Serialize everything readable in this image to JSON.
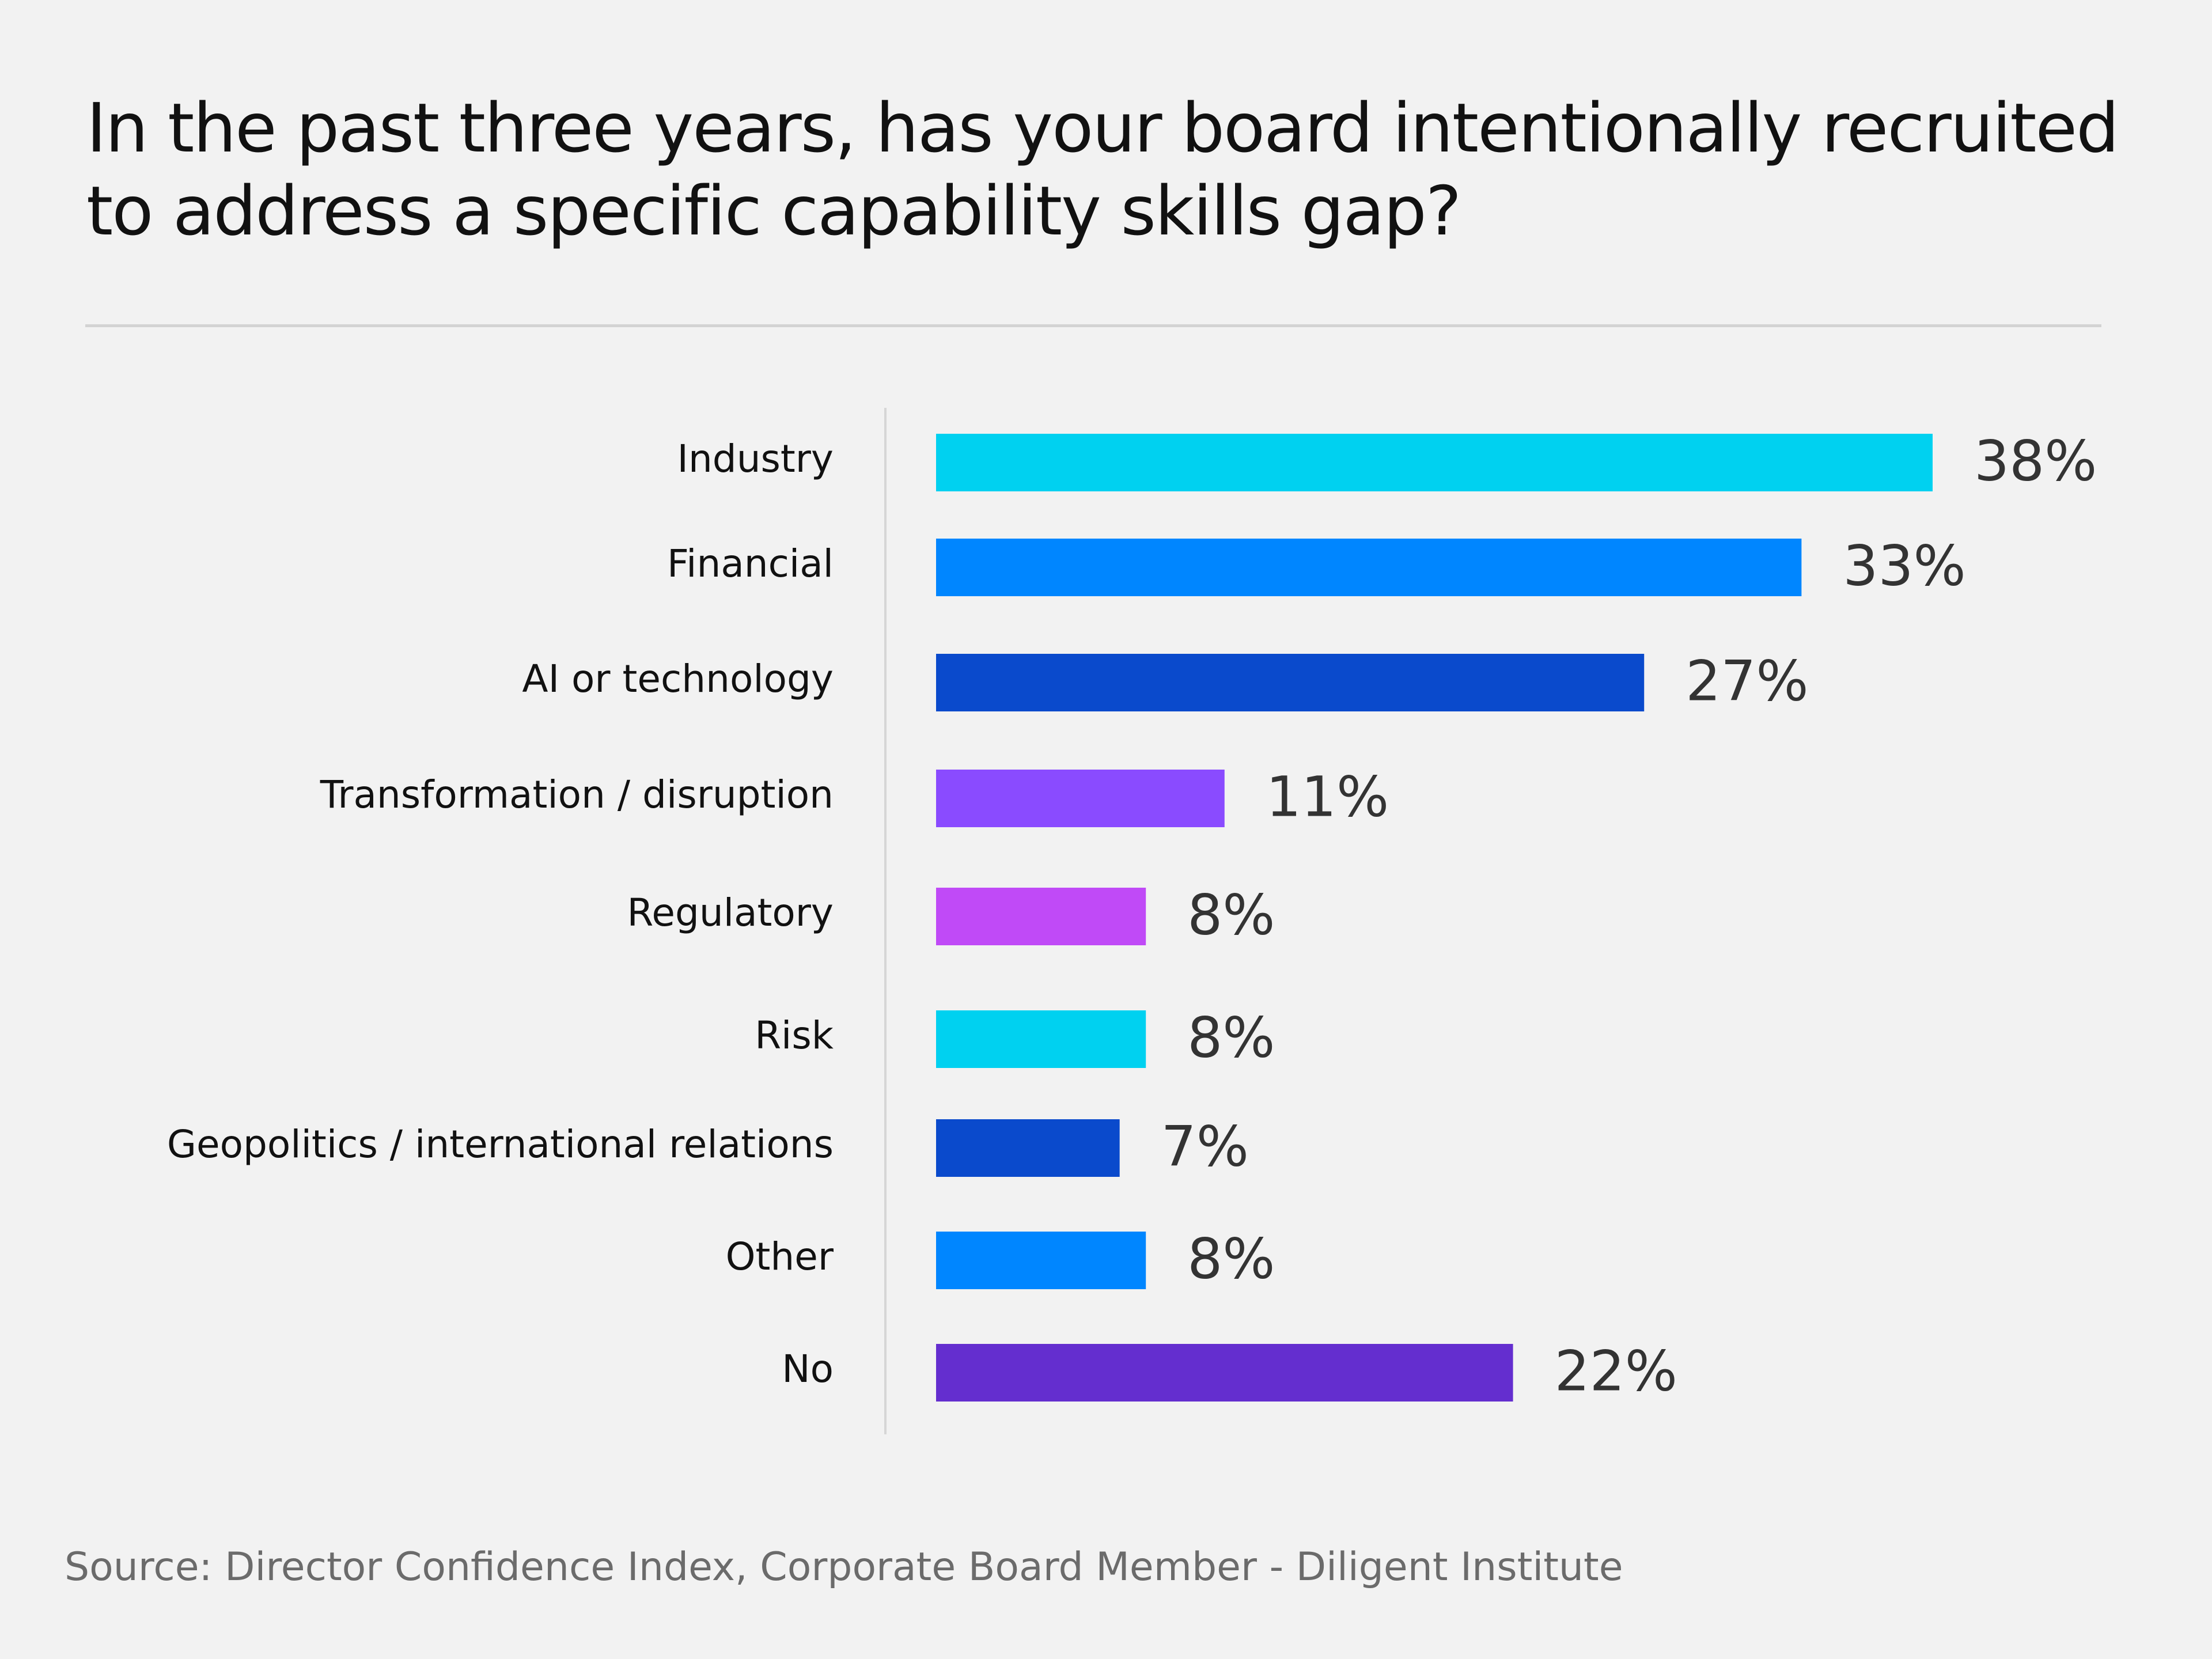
{
  "chart_data": {
    "type": "bar",
    "orientation": "horizontal",
    "title": "In the past three years, has your board intentionally recruited to address a specific capability skills gap?",
    "categories": [
      "Industry",
      "Financial",
      "AI or technology",
      "Transformation / disruption",
      "Regulatory",
      "Risk",
      "Geopolitics / international relations",
      "Other",
      "No"
    ],
    "values": [
      38,
      33,
      27,
      11,
      8,
      8,
      7,
      8,
      22
    ],
    "value_labels": [
      "38%",
      "33%",
      "27%",
      "11%",
      "8%",
      "8%",
      "7%",
      "8%",
      "22%"
    ],
    "colors": [
      "#00d1f0",
      "#0086ff",
      "#0a4acc",
      "#8a4bff",
      "#c04af7",
      "#00d1f0",
      "#0a4acc",
      "#0086ff",
      "#642ecf"
    ],
    "xlim": [
      0,
      38
    ],
    "grid": false,
    "legend": false
  },
  "footer": {
    "source": "Source: Director Confidence Index, Corporate Board Member - Diligent Institute"
  }
}
